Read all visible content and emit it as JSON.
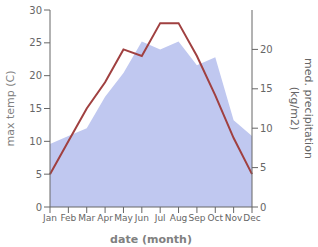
{
  "chart_data": {
    "type": "line",
    "categories": [
      "Jan",
      "Feb",
      "Mar",
      "Apr",
      "May",
      "Jun",
      "Jul",
      "Aug",
      "Sep",
      "Oct",
      "Nov",
      "Dec"
    ],
    "xlabel": "date (month)",
    "ylabel": "max temp (C)",
    "y2label": "med. precipitation\n(kg/m2)",
    "series": [
      {
        "type": "area",
        "axis": "y2",
        "color": "#c0c8f0",
        "values": [
          8,
          9,
          10,
          14,
          17,
          21,
          20,
          21,
          18,
          19,
          11,
          9
        ]
      },
      {
        "type": "line",
        "axis": "y",
        "color": "#a04040",
        "values": [
          5.0,
          10.0,
          15.0,
          19.0,
          24.0,
          23.0,
          28.0,
          28.0,
          23.0,
          17.0,
          10.5,
          5.0
        ]
      }
    ],
    "ylim": [
      0,
      30
    ],
    "yticks": [
      0,
      5,
      10,
      15,
      20,
      25,
      30
    ],
    "y2lim": [
      0,
      25
    ],
    "y2ticks": [
      0,
      5,
      10,
      15,
      20
    ],
    "grid": false
  }
}
